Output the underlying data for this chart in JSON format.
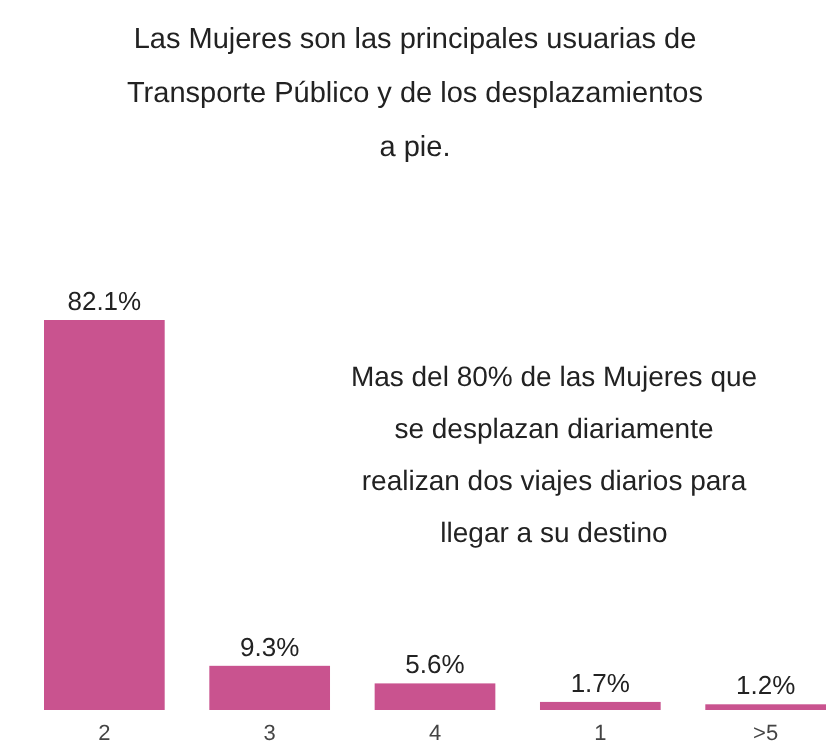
{
  "chart_data": {
    "type": "bar",
    "title": "Las Mujeres son las principales usuarias de Transporte Público y de los desplazamientos a pie.",
    "categories": [
      "2",
      "3",
      "4",
      "1",
      ">5"
    ],
    "values": [
      82.1,
      9.3,
      5.6,
      1.7,
      1.2
    ],
    "value_labels": [
      "82.1%",
      "9.3%",
      "5.6%",
      "1.7%",
      "1.2%"
    ],
    "color": "#c9538f",
    "annotations": [
      "Mas del 80% de las Mujeres que se desplazan diariamente realizan dos viajes diarios para llegar a su destino"
    ]
  }
}
